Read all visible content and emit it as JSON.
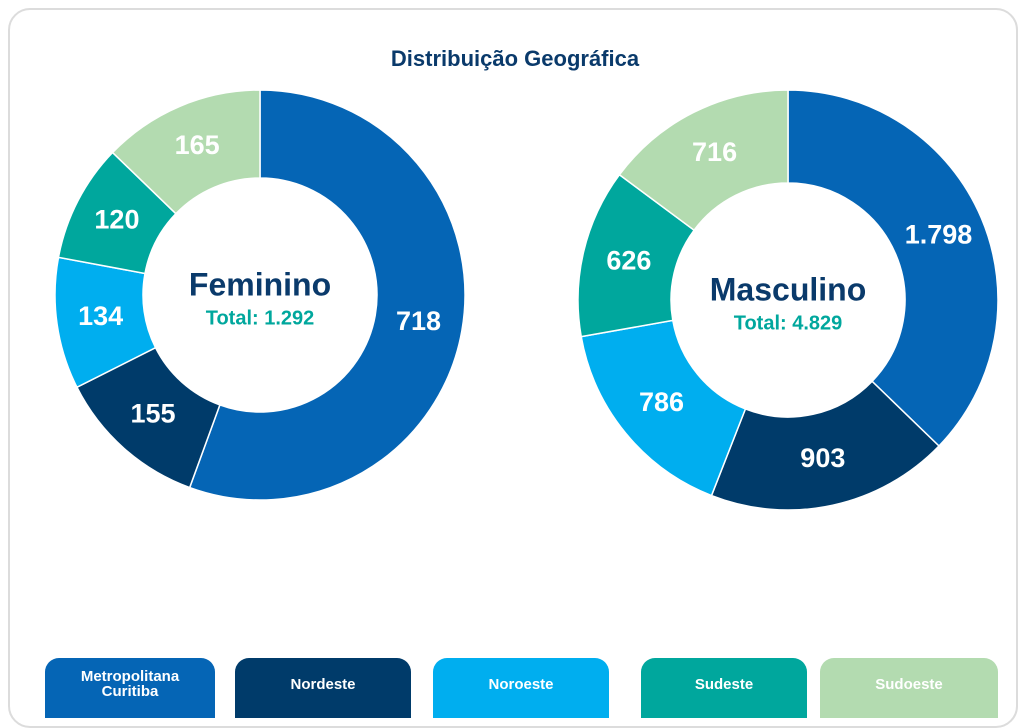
{
  "title": "Distribuição Geográfica",
  "chart_data": [
    {
      "type": "pie",
      "center_label": "Feminino",
      "total_label": "Total: 1.292",
      "categories": [
        "Metropolitana Curitiba",
        "Nordeste",
        "Noroeste",
        "Sudeste",
        "Sudoeste"
      ],
      "values": [
        718,
        155,
        134,
        120,
        165
      ],
      "value_labels": [
        "718",
        "155",
        "134",
        "120",
        "165"
      ],
      "colors": [
        "#0565b5",
        "#003b6a",
        "#00aeef",
        "#00a79d",
        "#b3dbb0"
      ]
    },
    {
      "type": "pie",
      "center_label": "Masculino",
      "total_label": "Total: 4.829",
      "categories": [
        "Metropolitana Curitiba",
        "Nordeste",
        "Noroeste",
        "Sudeste",
        "Sudoeste"
      ],
      "values": [
        1798,
        903,
        786,
        626,
        716
      ],
      "value_labels": [
        "1.798",
        "903",
        "786",
        "626",
        "716"
      ],
      "colors": [
        "#0565b5",
        "#003b6a",
        "#00aeef",
        "#00a79d",
        "#b3dbb0"
      ]
    }
  ]
}
